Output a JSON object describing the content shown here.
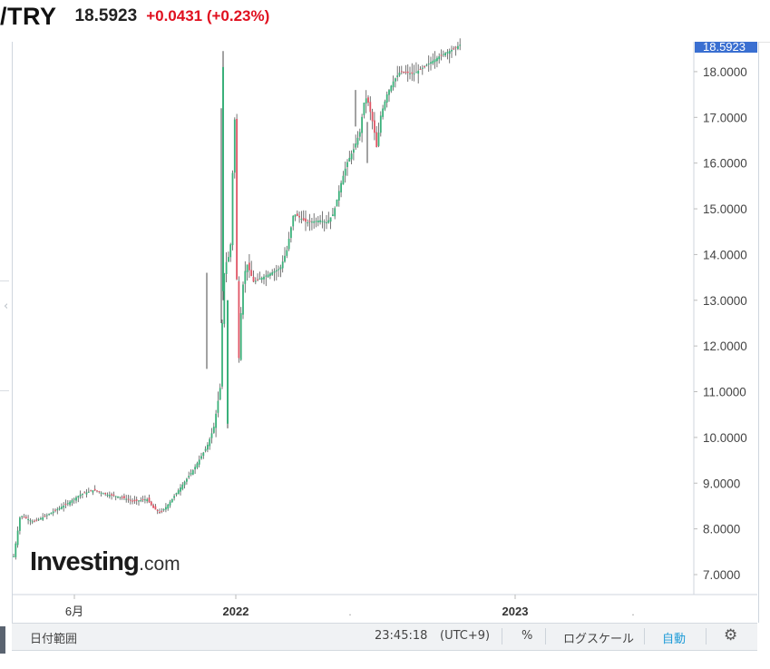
{
  "header": {
    "symbol": "/TRY",
    "price": "18.5923",
    "change": "+0.0431 (+0.23%)"
  },
  "logo": {
    "main": "Investing",
    "sub": ".com"
  },
  "chart_data": {
    "type": "candlestick",
    "y_ticks": [
      "7.0000",
      "8.0000",
      "9.0000",
      "10.0000",
      "11.0000",
      "12.0000",
      "13.0000",
      "14.0000",
      "15.0000",
      "16.0000",
      "17.0000",
      "18.0000"
    ],
    "current_price_label": "18.5923",
    "ylim": [
      6.5,
      18.6
    ],
    "x_ticks": [
      "6月",
      "2022",
      "2023"
    ],
    "grid": false,
    "series_close_path": [
      [
        0.0,
        7.4
      ],
      [
        0.01,
        8.3
      ],
      [
        0.03,
        8.15
      ],
      [
        0.05,
        8.3
      ],
      [
        0.08,
        8.55
      ],
      [
        0.1,
        8.75
      ],
      [
        0.12,
        8.85
      ],
      [
        0.14,
        8.75
      ],
      [
        0.16,
        8.7
      ],
      [
        0.18,
        8.6
      ],
      [
        0.2,
        8.65
      ],
      [
        0.21,
        8.45
      ],
      [
        0.22,
        8.35
      ],
      [
        0.23,
        8.5
      ],
      [
        0.25,
        8.9
      ],
      [
        0.27,
        9.3
      ],
      [
        0.29,
        9.8
      ],
      [
        0.3,
        10.2
      ],
      [
        0.31,
        11.1
      ],
      [
        0.315,
        13.5
      ],
      [
        0.32,
        13.9
      ],
      [
        0.325,
        14.0
      ],
      [
        0.33,
        16.5
      ],
      [
        0.333,
        17.3
      ],
      [
        0.336,
        11.0
      ],
      [
        0.34,
        12.5
      ],
      [
        0.345,
        13.5
      ],
      [
        0.35,
        13.8
      ],
      [
        0.36,
        13.4
      ],
      [
        0.38,
        13.55
      ],
      [
        0.4,
        13.7
      ],
      [
        0.41,
        14.1
      ],
      [
        0.415,
        14.5
      ],
      [
        0.42,
        14.9
      ],
      [
        0.43,
        14.8
      ],
      [
        0.44,
        14.7
      ],
      [
        0.46,
        14.75
      ],
      [
        0.47,
        14.7
      ],
      [
        0.48,
        14.9
      ],
      [
        0.49,
        15.5
      ],
      [
        0.5,
        16.0
      ],
      [
        0.51,
        16.3
      ],
      [
        0.52,
        16.7
      ],
      [
        0.525,
        17.3
      ],
      [
        0.53,
        17.45
      ],
      [
        0.54,
        16.8
      ],
      [
        0.545,
        16.3
      ],
      [
        0.55,
        17.0
      ],
      [
        0.56,
        17.5
      ],
      [
        0.57,
        17.8
      ],
      [
        0.58,
        18.0
      ],
      [
        0.6,
        17.95
      ],
      [
        0.62,
        18.15
      ],
      [
        0.64,
        18.35
      ],
      [
        0.66,
        18.5
      ],
      [
        0.67,
        18.59
      ]
    ]
  },
  "toolbar": {
    "date_range": "日付範囲",
    "time": "23:45:18",
    "tz": "(UTC+9)",
    "percent": "%",
    "log_scale": "ログスケール",
    "auto": "自動",
    "settings_icon": "gear-icon"
  },
  "colors": {
    "up": "#3ab07a",
    "down": "#e05565",
    "change": "#e0101f",
    "price_tag": "#3a6fd1"
  }
}
